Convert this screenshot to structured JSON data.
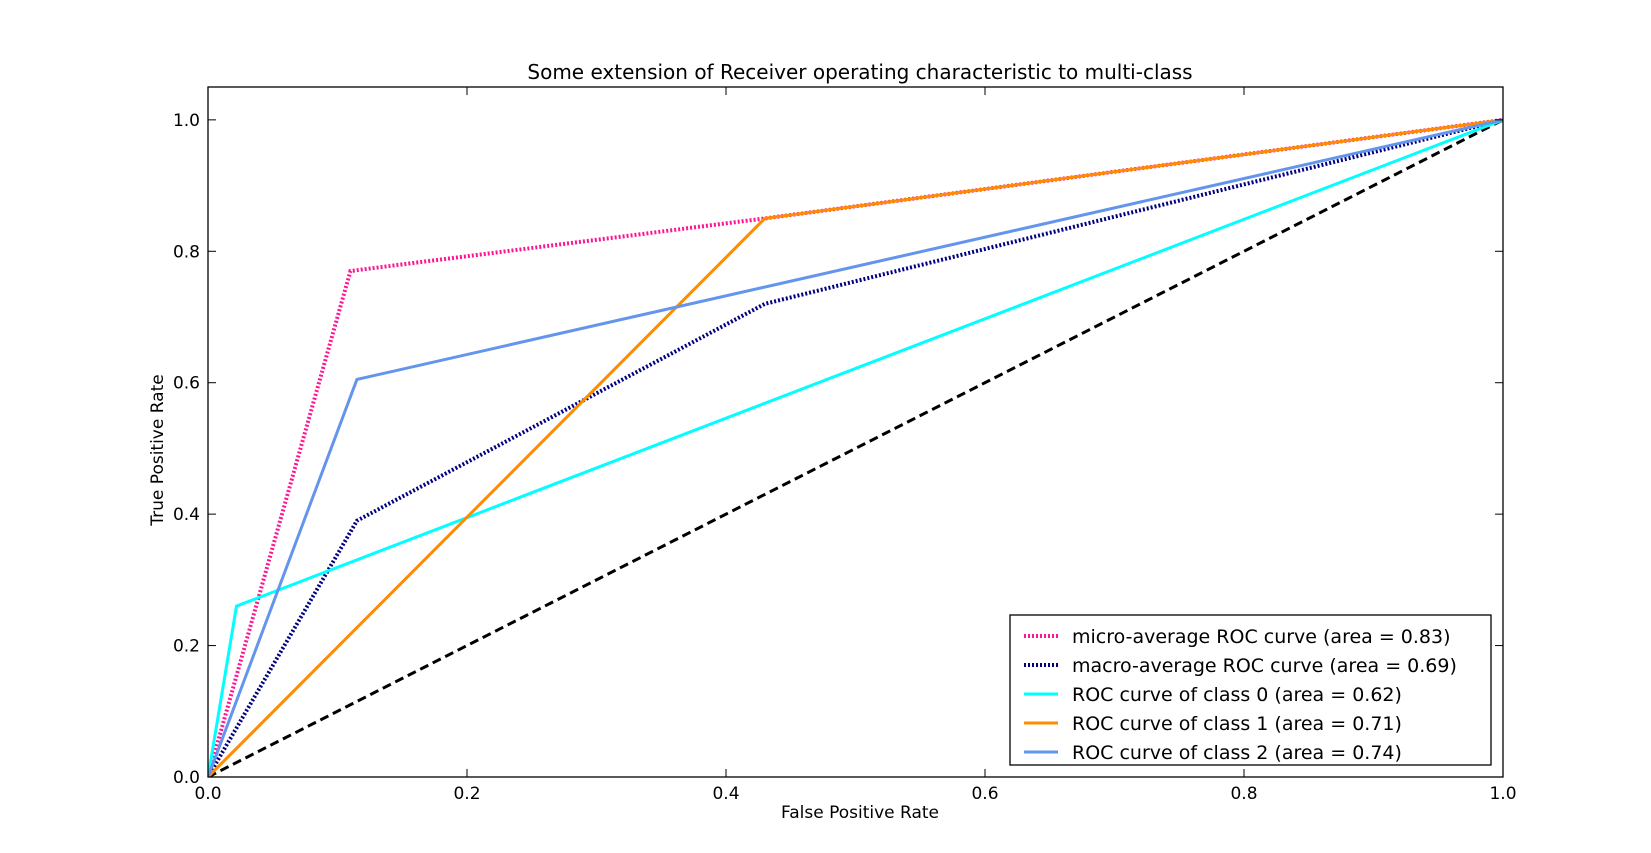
{
  "chart_data": {
    "type": "line",
    "title": "Some extension of Receiver operating characteristic to multi-class",
    "xlabel": "False Positive Rate",
    "ylabel": "True Positive Rate",
    "xlim": [
      0.0,
      1.0
    ],
    "ylim": [
      0.0,
      1.05
    ],
    "xticks": [
      "0.0",
      "0.2",
      "0.4",
      "0.6",
      "0.8",
      "1.0"
    ],
    "yticks": [
      "0.0",
      "0.2",
      "0.4",
      "0.6",
      "0.8",
      "1.0"
    ],
    "grid": false,
    "legend_position": "lower-right",
    "series": [
      {
        "name": "micro-average ROC curve (area = 0.83)",
        "color": "#ff1493",
        "style": "dotted",
        "points": [
          [
            0.0,
            0.0
          ],
          [
            0.11,
            0.77
          ],
          [
            0.43,
            0.85
          ],
          [
            1.0,
            1.0
          ]
        ]
      },
      {
        "name": "macro-average ROC curve (area = 0.69)",
        "color": "#000080",
        "style": "dotted",
        "points": [
          [
            0.0,
            0.0
          ],
          [
            0.115,
            0.39
          ],
          [
            0.43,
            0.72
          ],
          [
            1.0,
            1.0
          ]
        ]
      },
      {
        "name": "ROC curve of class 0 (area = 0.62)",
        "color": "#00ffff",
        "style": "solid",
        "points": [
          [
            0.0,
            0.0
          ],
          [
            0.022,
            0.26
          ],
          [
            1.0,
            1.0
          ]
        ]
      },
      {
        "name": "ROC curve of class 1 (area = 0.71)",
        "color": "#ff8c00",
        "style": "solid",
        "points": [
          [
            0.0,
            0.0
          ],
          [
            0.43,
            0.85
          ],
          [
            1.0,
            1.0
          ]
        ]
      },
      {
        "name": "ROC curve of class 2 (area = 0.74)",
        "color": "#6495ed",
        "style": "solid",
        "points": [
          [
            0.0,
            0.0
          ],
          [
            0.115,
            0.605
          ],
          [
            1.0,
            1.0
          ]
        ]
      }
    ],
    "reference_line": {
      "color": "#000000",
      "style": "dashed",
      "points": [
        [
          0.0,
          0.0
        ],
        [
          1.0,
          1.0
        ]
      ]
    }
  }
}
